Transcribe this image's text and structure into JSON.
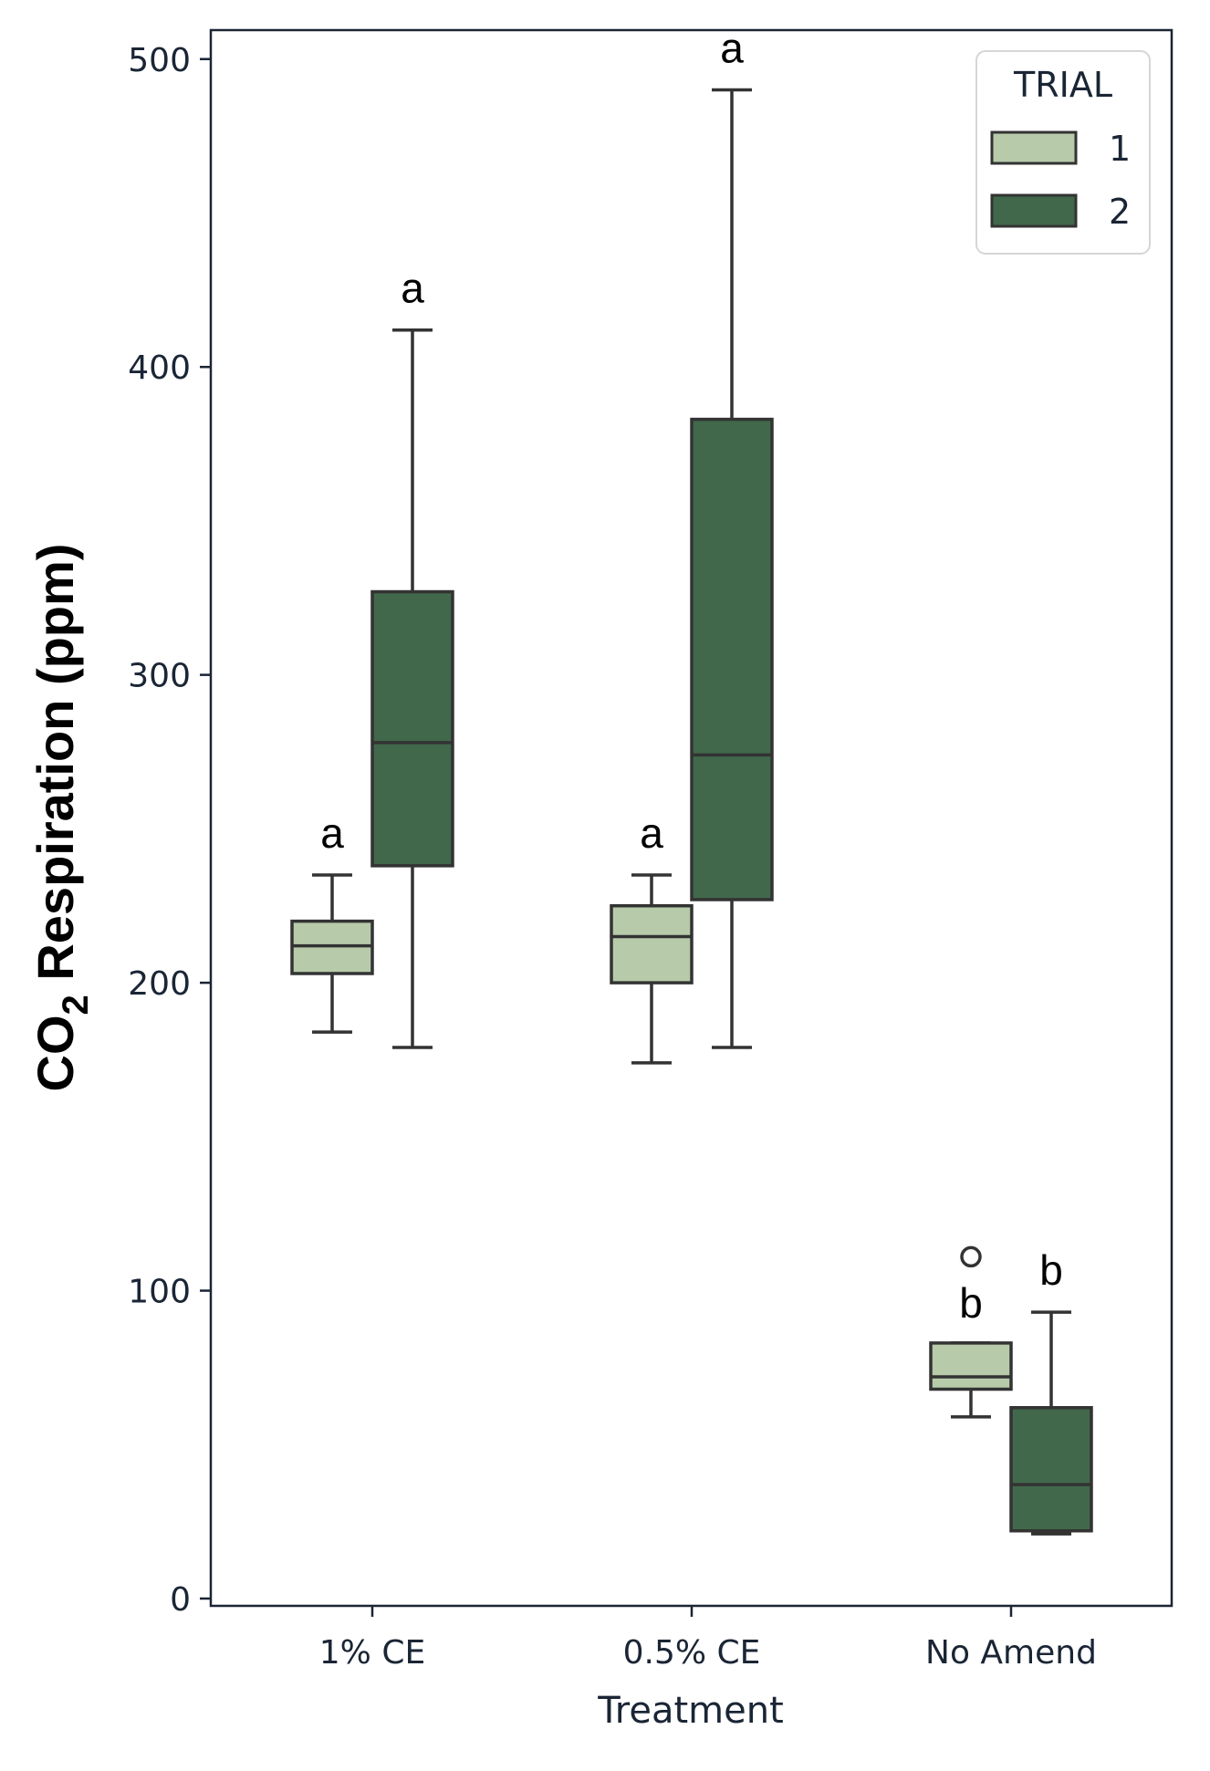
{
  "chart_data": {
    "type": "box",
    "xlabel": "Treatment",
    "ylabel": {
      "prefix": "CO",
      "subscript": "2",
      "suffix": " Respiration (ppm)"
    },
    "categories": [
      "1% CE",
      "0.5% CE",
      "No Amend"
    ],
    "ylim": [
      0,
      520
    ],
    "yticks": [
      0,
      100,
      200,
      300,
      400,
      500
    ],
    "grid": false,
    "legend": {
      "title": "TRIAL",
      "placement": "top-right"
    },
    "series": [
      {
        "name": "1",
        "color": "#b7cbaa",
        "boxes": [
          {
            "whisker_low": 184,
            "q1": 203,
            "median": 212,
            "q3": 220,
            "whisker_high": 235,
            "outliers": [],
            "label": "a"
          },
          {
            "whisker_low": 174,
            "q1": 200,
            "median": 215,
            "q3": 225,
            "whisker_high": 235,
            "outliers": [],
            "label": "a"
          },
          {
            "whisker_low": 59,
            "q1": 68,
            "median": 72,
            "q3": 83,
            "whisker_high": 83,
            "outliers": [
              111
            ],
            "label": "b"
          }
        ]
      },
      {
        "name": "2",
        "color": "#41684b",
        "boxes": [
          {
            "whisker_low": 179,
            "q1": 238,
            "median": 278,
            "q3": 327,
            "whisker_high": 412,
            "outliers": [],
            "label": "a"
          },
          {
            "whisker_low": 179,
            "q1": 227,
            "median": 274,
            "q3": 383,
            "whisker_high": 490,
            "outliers": [],
            "label": "a"
          },
          {
            "whisker_low": 21,
            "q1": 22,
            "median": 37,
            "q3": 62,
            "whisker_high": 93,
            "outliers": [],
            "label": "b"
          }
        ]
      }
    ]
  }
}
